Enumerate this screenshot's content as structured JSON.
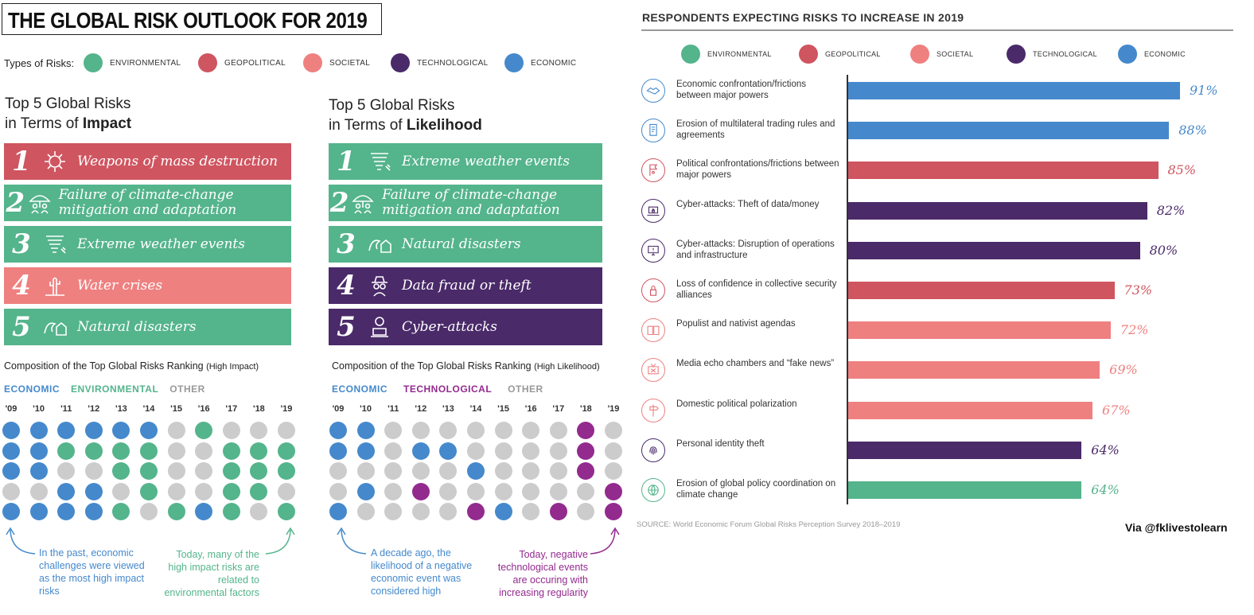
{
  "title": "THE GLOBAL RISK OUTLOOK FOR 2019",
  "colors": {
    "environmental": "#54b48c",
    "geopolitical": "#cf5560",
    "societal": "#ef8080",
    "technological": "#4a2a69",
    "economic": "#4589cc",
    "other": "#cccccc",
    "tech_dot": "#932a8e"
  },
  "types": {
    "label": "Types of Risks:",
    "items": [
      {
        "name": "ENVIRONMENTAL",
        "key": "environmental"
      },
      {
        "name": "GEOPOLITICAL",
        "key": "geopolitical"
      },
      {
        "name": "SOCIETAL",
        "key": "societal"
      },
      {
        "name": "TECHNOLOGICAL",
        "key": "technological"
      },
      {
        "name": "ECONOMIC",
        "key": "economic"
      }
    ]
  },
  "impact": {
    "heading_l1": "Top 5 Global Risks",
    "heading_l2_pre": "in Terms of ",
    "heading_l2_bold": "Impact",
    "risks": [
      {
        "num": "1",
        "label": "Weapons of mass destruction",
        "key": "geopolitical",
        "icon": "explosion-icon"
      },
      {
        "num": "2",
        "label": "Failure of climate-change mitigation and adaptation",
        "key": "environmental",
        "icon": "umbrella-people-icon"
      },
      {
        "num": "3",
        "label": "Extreme weather events",
        "key": "environmental",
        "icon": "tornado-icon"
      },
      {
        "num": "4",
        "label": "Water crises",
        "key": "societal",
        "icon": "cactus-icon"
      },
      {
        "num": "5",
        "label": "Natural disasters",
        "key": "environmental",
        "icon": "wave-house-icon"
      }
    ]
  },
  "likelihood": {
    "heading_l1": "Top 5 Global Risks",
    "heading_l2_pre": "in Terms of ",
    "heading_l2_bold": "Likelihood",
    "risks": [
      {
        "num": "1",
        "label": "Extreme weather events",
        "key": "environmental",
        "icon": "tornado-icon"
      },
      {
        "num": "2",
        "label": "Failure of climate-change mitigation and adaptation",
        "key": "environmental",
        "icon": "umbrella-people-icon"
      },
      {
        "num": "3",
        "label": "Natural disasters",
        "key": "environmental",
        "icon": "wave-house-icon"
      },
      {
        "num": "4",
        "label": "Data fraud or theft",
        "key": "technological",
        "icon": "spy-icon"
      },
      {
        "num": "5",
        "label": "Cyber-attacks",
        "key": "technological",
        "icon": "hacker-laptop-icon"
      }
    ]
  },
  "comp_impact": {
    "title": "Composition of the Top Global Risks Ranking",
    "title_note": "(High Impact)",
    "legend": [
      {
        "label": "ECONOMIC",
        "key": "economic"
      },
      {
        "label": "ENVIRONMENTAL",
        "key": "environmental"
      },
      {
        "label": "OTHER",
        "key": "other"
      }
    ],
    "note_left": "In the past, economic challenges were viewed as the most high impact risks",
    "note_right": "Today, many of the high impact risks are related to environmental factors"
  },
  "comp_likelihood": {
    "title": "Composition of  the Top Global Risks Ranking",
    "title_note": "(High Likelihood)",
    "legend": [
      {
        "label": "ECONOMIC",
        "key": "economic"
      },
      {
        "label": "TECHNOLOGICAL",
        "key": "tech_dot"
      },
      {
        "label": "OTHER",
        "key": "other"
      }
    ],
    "note_left": "A decade ago, the likelihood of a negative economic event was considered high",
    "note_right": "Today, negative technological events are occuring with increasing regularity"
  },
  "increase": {
    "heading": "RESPONDENTS EXPECTING RISKS TO INCREASE IN 2019",
    "source": "SOURCE: World Economic Forum Global Risks Perception Survey 2018–2019",
    "via": "Via @fklivestolearn"
  },
  "chart_data": [
    {
      "type": "heatmap",
      "title": "Composition of the Top Global Risks Ranking (High Impact)",
      "x": [
        "'09",
        "'10",
        "'11",
        "'12",
        "'13",
        "'14",
        "'15",
        "'16",
        "'17",
        "'18",
        "'19"
      ],
      "rows": 5,
      "legend": [
        "ECONOMIC",
        "ENVIRONMENTAL",
        "OTHER"
      ],
      "columns": [
        [
          "E",
          "E",
          "E",
          "O",
          "E"
        ],
        [
          "E",
          "E",
          "E",
          "O",
          "E"
        ],
        [
          "E",
          "V",
          "O",
          "E",
          "E"
        ],
        [
          "E",
          "V",
          "O",
          "E",
          "E"
        ],
        [
          "E",
          "V",
          "V",
          "O",
          "V"
        ],
        [
          "E",
          "V",
          "V",
          "V",
          "O"
        ],
        [
          "O",
          "O",
          "O",
          "O",
          "V"
        ],
        [
          "V",
          "O",
          "O",
          "O",
          "E"
        ],
        [
          "O",
          "V",
          "V",
          "V",
          "V"
        ],
        [
          "O",
          "V",
          "V",
          "V",
          "O"
        ],
        [
          "O",
          "V",
          "V",
          "O",
          "V"
        ]
      ]
    },
    {
      "type": "heatmap",
      "title": "Composition of  the Top Global Risks Ranking (High Likelihood)",
      "x": [
        "'09",
        "'10",
        "'11",
        "'12",
        "'13",
        "'14",
        "'15",
        "'16",
        "'17",
        "'18",
        "'19"
      ],
      "rows": 5,
      "legend": [
        "ECONOMIC",
        "TECHNOLOGICAL",
        "OTHER"
      ],
      "columns": [
        [
          "E",
          "E",
          "O",
          "O",
          "E"
        ],
        [
          "E",
          "E",
          "O",
          "E",
          "O"
        ],
        [
          "O",
          "O",
          "O",
          "O",
          "O"
        ],
        [
          "O",
          "E",
          "O",
          "T",
          "O"
        ],
        [
          "O",
          "E",
          "O",
          "O",
          "O"
        ],
        [
          "O",
          "O",
          "E",
          "O",
          "T"
        ],
        [
          "O",
          "O",
          "O",
          "O",
          "E"
        ],
        [
          "O",
          "O",
          "O",
          "O",
          "O"
        ],
        [
          "O",
          "O",
          "O",
          "O",
          "T"
        ],
        [
          "T",
          "T",
          "T",
          "O",
          "O"
        ],
        [
          "O",
          "O",
          "O",
          "T",
          "T"
        ]
      ]
    },
    {
      "type": "bar",
      "title": "RESPONDENTS EXPECTING RISKS TO INCREASE IN 2019",
      "orientation": "horizontal",
      "unit": "%",
      "xlim": [
        0,
        100
      ],
      "categories": [
        "Economic confrontation/frictions between major powers",
        "Erosion of multilateral trading rules and agreements",
        "Political confrontations/frictions between major powers",
        "Cyber-attacks: Theft of data/money",
        "Cyber-attacks: Disruption of operations and infrastructure",
        "Loss of confidence in collective security alliances",
        "Populist and nativist agendas",
        "Media echo chambers and “fake news”",
        "Domestic political polarization",
        "Personal identity theft",
        "Erosion of global policy coordination on climate change"
      ],
      "values": [
        91,
        88,
        85,
        82,
        80,
        73,
        72,
        69,
        67,
        64,
        64
      ],
      "labels": [
        "91%",
        "88%",
        "85%",
        "82%",
        "80%",
        "73%",
        "72%",
        "69%",
        "67%",
        "64%",
        "64%"
      ],
      "category_type": [
        "economic",
        "economic",
        "geopolitical",
        "technological",
        "technological",
        "geopolitical",
        "societal",
        "societal",
        "societal",
        "technological",
        "environmental"
      ],
      "icons": [
        "handshake-icon",
        "document-icon",
        "flag-icon",
        "laptop-lock-icon",
        "computer-alert-icon",
        "padlock-icon",
        "book-icon",
        "tv-icon",
        "signpost-icon",
        "fingerprint-icon",
        "globe-icon"
      ],
      "legend": [
        "ENVIRONMENTAL",
        "GEOPOLITICAL",
        "SOCIETAL",
        "TECHNOLOGICAL",
        "ECONOMIC"
      ]
    }
  ]
}
